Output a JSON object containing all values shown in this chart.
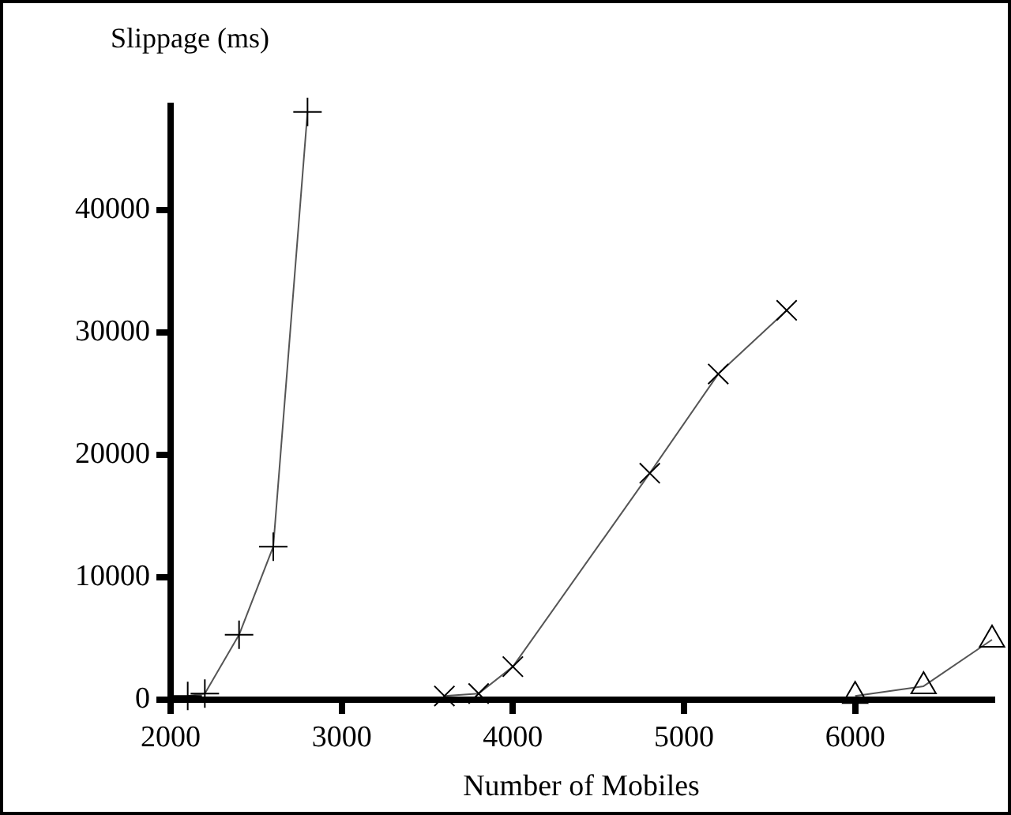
{
  "chart_data": {
    "type": "line",
    "ylabel": "Slippage (ms)",
    "xlabel": "Number of Mobiles",
    "xlim": [
      2000,
      6800
    ],
    "xticks": [
      2000,
      3000,
      4000,
      5000,
      6000
    ],
    "ylim": [
      0,
      48500
    ],
    "yticks": [
      0,
      10000,
      20000,
      30000,
      40000
    ],
    "grid": false,
    "line_style": "solid",
    "series": [
      {
        "color": "#555555",
        "marker": "cross",
        "x": [
          2100,
          2200,
          2400,
          2600,
          2800
        ],
        "values": [
          300,
          500,
          5300,
          12500,
          48000
        ]
      },
      {
        "color": "#555555",
        "marker": "crossRot",
        "x": [
          3600,
          3800,
          4000,
          4800,
          5200,
          5600
        ],
        "values": [
          300,
          500,
          2700,
          18500,
          26600,
          31800
        ]
      },
      {
        "color": "#555555",
        "marker": "triangle",
        "x": [
          6000,
          6400,
          6800
        ],
        "values": [
          300,
          1100,
          4900
        ]
      }
    ]
  }
}
